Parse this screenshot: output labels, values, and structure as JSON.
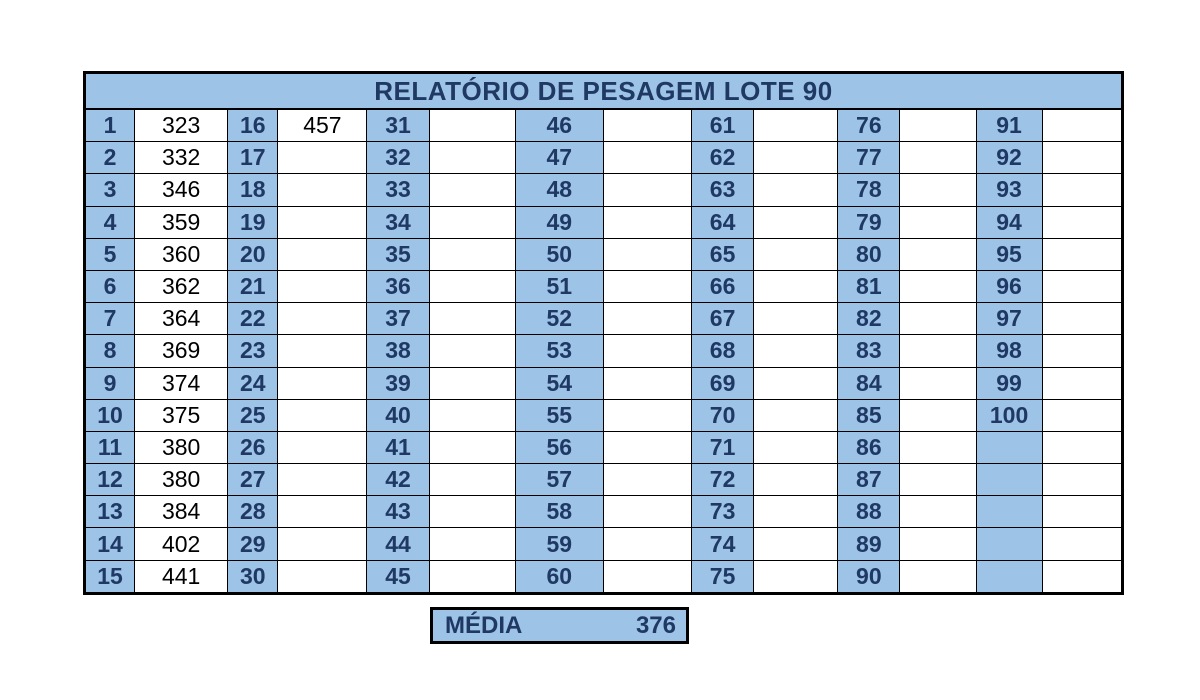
{
  "report": {
    "title": "RELATÓRIO DE PESAGEM LOTE  90",
    "columns": [
      {
        "entries": [
          {
            "n": "1",
            "w": "323"
          },
          {
            "n": "2",
            "w": "332"
          },
          {
            "n": "3",
            "w": "346"
          },
          {
            "n": "4",
            "w": "359"
          },
          {
            "n": "5",
            "w": "360"
          },
          {
            "n": "6",
            "w": "362"
          },
          {
            "n": "7",
            "w": "364"
          },
          {
            "n": "8",
            "w": "369"
          },
          {
            "n": "9",
            "w": "374"
          },
          {
            "n": "10",
            "w": "375"
          },
          {
            "n": "11",
            "w": "380"
          },
          {
            "n": "12",
            "w": "380"
          },
          {
            "n": "13",
            "w": "384"
          },
          {
            "n": "14",
            "w": "402"
          },
          {
            "n": "15",
            "w": "441"
          }
        ]
      },
      {
        "entries": [
          {
            "n": "16",
            "w": "457"
          },
          {
            "n": "17",
            "w": ""
          },
          {
            "n": "18",
            "w": ""
          },
          {
            "n": "19",
            "w": ""
          },
          {
            "n": "20",
            "w": ""
          },
          {
            "n": "21",
            "w": ""
          },
          {
            "n": "22",
            "w": ""
          },
          {
            "n": "23",
            "w": ""
          },
          {
            "n": "24",
            "w": ""
          },
          {
            "n": "25",
            "w": ""
          },
          {
            "n": "26",
            "w": ""
          },
          {
            "n": "27",
            "w": ""
          },
          {
            "n": "28",
            "w": ""
          },
          {
            "n": "29",
            "w": ""
          },
          {
            "n": "30",
            "w": ""
          }
        ]
      },
      {
        "entries": [
          {
            "n": "31",
            "w": ""
          },
          {
            "n": "32",
            "w": ""
          },
          {
            "n": "33",
            "w": ""
          },
          {
            "n": "34",
            "w": ""
          },
          {
            "n": "35",
            "w": ""
          },
          {
            "n": "36",
            "w": ""
          },
          {
            "n": "37",
            "w": ""
          },
          {
            "n": "38",
            "w": ""
          },
          {
            "n": "39",
            "w": ""
          },
          {
            "n": "40",
            "w": ""
          },
          {
            "n": "41",
            "w": ""
          },
          {
            "n": "42",
            "w": ""
          },
          {
            "n": "43",
            "w": ""
          },
          {
            "n": "44",
            "w": ""
          },
          {
            "n": "45",
            "w": ""
          }
        ]
      },
      {
        "entries": [
          {
            "n": "46",
            "w": ""
          },
          {
            "n": "47",
            "w": ""
          },
          {
            "n": "48",
            "w": ""
          },
          {
            "n": "49",
            "w": ""
          },
          {
            "n": "50",
            "w": ""
          },
          {
            "n": "51",
            "w": ""
          },
          {
            "n": "52",
            "w": ""
          },
          {
            "n": "53",
            "w": ""
          },
          {
            "n": "54",
            "w": ""
          },
          {
            "n": "55",
            "w": ""
          },
          {
            "n": "56",
            "w": ""
          },
          {
            "n": "57",
            "w": ""
          },
          {
            "n": "58",
            "w": ""
          },
          {
            "n": "59",
            "w": ""
          },
          {
            "n": "60",
            "w": ""
          }
        ]
      },
      {
        "entries": [
          {
            "n": "61",
            "w": ""
          },
          {
            "n": "62",
            "w": ""
          },
          {
            "n": "63",
            "w": ""
          },
          {
            "n": "64",
            "w": ""
          },
          {
            "n": "65",
            "w": ""
          },
          {
            "n": "66",
            "w": ""
          },
          {
            "n": "67",
            "w": ""
          },
          {
            "n": "68",
            "w": ""
          },
          {
            "n": "69",
            "w": ""
          },
          {
            "n": "70",
            "w": ""
          },
          {
            "n": "71",
            "w": ""
          },
          {
            "n": "72",
            "w": ""
          },
          {
            "n": "73",
            "w": ""
          },
          {
            "n": "74",
            "w": ""
          },
          {
            "n": "75",
            "w": ""
          }
        ]
      },
      {
        "entries": [
          {
            "n": "76",
            "w": ""
          },
          {
            "n": "77",
            "w": ""
          },
          {
            "n": "78",
            "w": ""
          },
          {
            "n": "79",
            "w": ""
          },
          {
            "n": "80",
            "w": ""
          },
          {
            "n": "81",
            "w": ""
          },
          {
            "n": "82",
            "w": ""
          },
          {
            "n": "83",
            "w": ""
          },
          {
            "n": "84",
            "w": ""
          },
          {
            "n": "85",
            "w": ""
          },
          {
            "n": "86",
            "w": ""
          },
          {
            "n": "87",
            "w": ""
          },
          {
            "n": "88",
            "w": ""
          },
          {
            "n": "89",
            "w": ""
          },
          {
            "n": "90",
            "w": ""
          }
        ]
      },
      {
        "entries": [
          {
            "n": "91",
            "w": ""
          },
          {
            "n": "92",
            "w": ""
          },
          {
            "n": "93",
            "w": ""
          },
          {
            "n": "94",
            "w": ""
          },
          {
            "n": "95",
            "w": ""
          },
          {
            "n": "96",
            "w": ""
          },
          {
            "n": "97",
            "w": ""
          },
          {
            "n": "98",
            "w": ""
          },
          {
            "n": "99",
            "w": ""
          },
          {
            "n": "100",
            "w": ""
          },
          {
            "n": "",
            "w": ""
          },
          {
            "n": "",
            "w": ""
          },
          {
            "n": "",
            "w": ""
          },
          {
            "n": "",
            "w": ""
          },
          {
            "n": "",
            "w": ""
          }
        ]
      }
    ],
    "summary": {
      "label": "MÉDIA",
      "value": "376"
    },
    "colors": {
      "header_fill": "#9dc3e6",
      "header_text": "#1f3864",
      "border": "#000000",
      "value_text": "#000000"
    }
  }
}
